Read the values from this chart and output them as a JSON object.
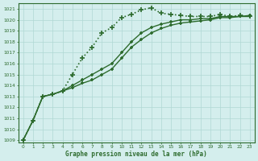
{
  "title": "Graphe pression niveau de la mer (hPa)",
  "bg_color": "#d4eeed",
  "grid_color": "#b0d8d4",
  "line_color": "#2d6b2d",
  "xlim": [
    -0.5,
    23.5
  ],
  "ylim": [
    1008.8,
    1021.5
  ],
  "yticks": [
    1009,
    1010,
    1011,
    1012,
    1013,
    1014,
    1015,
    1016,
    1017,
    1018,
    1019,
    1020,
    1021
  ],
  "xticks": [
    0,
    1,
    2,
    3,
    4,
    5,
    6,
    7,
    8,
    9,
    10,
    11,
    12,
    13,
    14,
    15,
    16,
    17,
    18,
    19,
    20,
    21,
    22,
    23
  ],
  "series": [
    {
      "x": [
        0,
        1,
        2,
        3,
        4,
        5,
        6,
        7,
        8,
        9,
        10,
        11,
        12,
        13,
        14,
        15,
        16,
        17,
        18,
        19,
        20,
        21,
        22,
        23
      ],
      "y": [
        1009.0,
        1010.8,
        1013.0,
        1013.2,
        1013.5,
        1015.0,
        1016.5,
        1017.5,
        1018.8,
        1019.3,
        1020.2,
        1020.5,
        1020.9,
        1021.1,
        1020.6,
        1020.5,
        1020.4,
        1020.3,
        1020.3,
        1020.3,
        1020.5,
        1020.3,
        1020.4,
        1020.3
      ],
      "marker": "+",
      "markersize": 4,
      "linestyle": ":",
      "linewidth": 1.2
    },
    {
      "x": [
        0,
        1,
        2,
        3,
        4,
        5,
        6,
        7,
        8,
        9,
        10,
        11,
        12,
        13,
        14,
        15,
        16,
        17,
        18,
        19,
        20,
        21,
        22,
        23
      ],
      "y": [
        1009.0,
        1010.8,
        1013.0,
        1013.2,
        1013.5,
        1013.8,
        1014.2,
        1014.5,
        1015.0,
        1015.5,
        1016.5,
        1017.5,
        1018.2,
        1018.8,
        1019.2,
        1019.5,
        1019.7,
        1019.8,
        1019.9,
        1020.0,
        1020.2,
        1020.2,
        1020.3,
        1020.3
      ],
      "marker": "+",
      "markersize": 3,
      "linestyle": "-",
      "linewidth": 1.0
    },
    {
      "x": [
        0,
        1,
        2,
        3,
        4,
        5,
        6,
        7,
        8,
        9,
        10,
        11,
        12,
        13,
        14,
        15,
        16,
        17,
        18,
        19,
        20,
        21,
        22,
        23
      ],
      "y": [
        1009.0,
        1010.8,
        1013.0,
        1013.2,
        1013.5,
        1014.0,
        1014.5,
        1015.0,
        1015.5,
        1016.0,
        1017.0,
        1018.0,
        1018.8,
        1019.3,
        1019.6,
        1019.8,
        1020.0,
        1020.0,
        1020.1,
        1020.1,
        1020.3,
        1020.3,
        1020.3,
        1020.4
      ],
      "marker": "+",
      "markersize": 3,
      "linestyle": "-",
      "linewidth": 1.0
    }
  ]
}
